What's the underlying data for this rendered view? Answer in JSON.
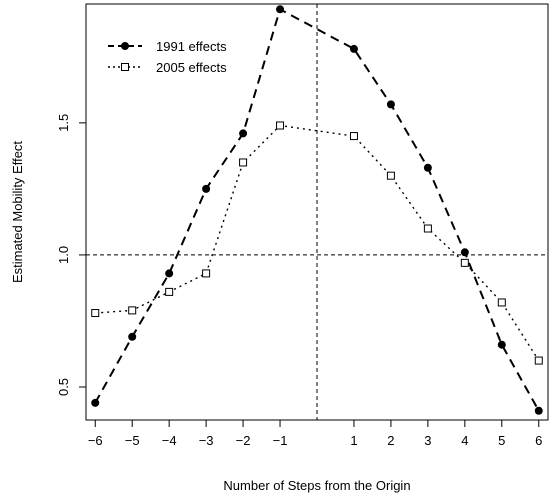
{
  "chart_data": {
    "type": "line",
    "xlabel": "Number of Steps from the Origin",
    "ylabel": "Estimated Mobility Effect",
    "xlim": [
      -6.25,
      6.25
    ],
    "ylim": [
      0.375,
      1.95
    ],
    "x_ticks": [
      -6,
      -5,
      -4,
      -3,
      -2,
      -1,
      1,
      2,
      3,
      4,
      5,
      6
    ],
    "x_tick_labels": [
      "−6",
      "−5",
      "−4",
      "−3",
      "−2",
      "−1",
      "1",
      "2",
      "3",
      "4",
      "5",
      "6"
    ],
    "y_ticks": [
      0.5,
      1.0,
      1.5
    ],
    "y_tick_labels": [
      "0.5",
      "1.0",
      "1.5"
    ],
    "reference_lines": {
      "horizontal": 1.0,
      "vertical": 0
    },
    "legend_position": "top-left",
    "grid": false,
    "x": [
      -6,
      -5,
      -4,
      -3,
      -2,
      -1,
      1,
      2,
      3,
      4,
      5,
      6
    ],
    "series": [
      {
        "name": "1991 effects",
        "values": [
          0.44,
          0.69,
          0.93,
          1.25,
          1.46,
          1.93,
          1.78,
          1.57,
          1.33,
          1.01,
          0.66,
          0.41
        ],
        "line_style": "dashed",
        "marker": "filled-circle",
        "color": "#000000",
        "line_through_zero": true
      },
      {
        "name": "2005 effects",
        "values": [
          0.78,
          0.79,
          0.86,
          0.93,
          1.35,
          1.49,
          1.45,
          1.3,
          1.1,
          0.97,
          0.82,
          0.6
        ],
        "line_style": "dotted",
        "marker": "open-square",
        "color": "#000000",
        "line_through_zero": true
      }
    ]
  }
}
